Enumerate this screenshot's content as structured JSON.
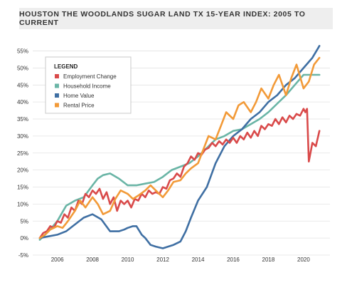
{
  "chart_data": {
    "type": "line",
    "title": "HOUSTON THE WOODLANDS SUGAR LAND TX 15-YEAR INDEX: 2005 TO CURRENT",
    "xlabel": "",
    "ylabel": "",
    "xlim": [
      2004.6,
      2021.5
    ],
    "ylim": [
      -5,
      57
    ],
    "x_ticks": [
      2006,
      2008,
      2010,
      2012,
      2014,
      2016,
      2018,
      2020
    ],
    "x_tick_labels": [
      "2006",
      "2008",
      "2010",
      "2012",
      "2014",
      "2016",
      "2018",
      "2020"
    ],
    "y_ticks": [
      -5,
      0,
      5,
      10,
      15,
      20,
      25,
      30,
      35,
      40,
      45,
      50,
      55
    ],
    "y_tick_labels": [
      "-5%",
      "0%",
      "5%",
      "10%",
      "15%",
      "20%",
      "25%",
      "30%",
      "35%",
      "40%",
      "45%",
      "50%",
      "55%"
    ],
    "grid": true,
    "legend": {
      "title": "LEGEND",
      "position": "top-left"
    },
    "series": [
      {
        "name": "Employment Change",
        "color": "#d94a4a",
        "x": [
          2005.0,
          2005.2,
          2005.4,
          2005.6,
          2005.8,
          2006.0,
          2006.2,
          2006.4,
          2006.6,
          2006.8,
          2007.0,
          2007.2,
          2007.4,
          2007.6,
          2007.8,
          2008.0,
          2008.2,
          2008.4,
          2008.6,
          2008.8,
          2009.0,
          2009.2,
          2009.4,
          2009.6,
          2009.8,
          2010.0,
          2010.2,
          2010.4,
          2010.6,
          2010.8,
          2011.0,
          2011.2,
          2011.4,
          2011.6,
          2011.8,
          2012.0,
          2012.2,
          2012.4,
          2012.6,
          2012.8,
          2013.0,
          2013.2,
          2013.4,
          2013.6,
          2013.8,
          2014.0,
          2014.2,
          2014.4,
          2014.6,
          2014.8,
          2015.0,
          2015.2,
          2015.4,
          2015.6,
          2015.8,
          2016.0,
          2016.2,
          2016.4,
          2016.6,
          2016.8,
          2017.0,
          2017.2,
          2017.4,
          2017.6,
          2017.8,
          2018.0,
          2018.2,
          2018.4,
          2018.6,
          2018.8,
          2019.0,
          2019.2,
          2019.4,
          2019.6,
          2019.8,
          2020.0,
          2020.1,
          2020.2,
          2020.3,
          2020.5,
          2020.7,
          2020.9
        ],
        "values": [
          0,
          1.5,
          2,
          3.5,
          3,
          5,
          4.5,
          7,
          6,
          9,
          8,
          11,
          10,
          13,
          12,
          14,
          13,
          14.5,
          11.5,
          13.5,
          10,
          12,
          8,
          11,
          10,
          11,
          9,
          11.5,
          11,
          13,
          12,
          14,
          13,
          13.5,
          13,
          15,
          14.5,
          17,
          17.5,
          19,
          18,
          21,
          22,
          24,
          23,
          25,
          24.5,
          26,
          26.5,
          28,
          27,
          28.5,
          27.5,
          29,
          28,
          29.5,
          28,
          30,
          29,
          31,
          29.5,
          31.5,
          30,
          33,
          32,
          33.5,
          33,
          35,
          33.5,
          35.5,
          34,
          36,
          35,
          36.5,
          36,
          38,
          37,
          38,
          22.5,
          28,
          27,
          31.5
        ]
      },
      {
        "name": "Household Income",
        "color": "#6ab5a6",
        "x": [
          2005.0,
          2005.5,
          2006.0,
          2006.5,
          2007.0,
          2007.5,
          2008.0,
          2008.3,
          2008.6,
          2009.0,
          2009.5,
          2010.0,
          2010.5,
          2011.0,
          2011.5,
          2012.0,
          2012.5,
          2013.0,
          2013.5,
          2014.0,
          2014.5,
          2015.0,
          2015.5,
          2016.0,
          2016.5,
          2017.0,
          2017.5,
          2018.0,
          2018.5,
          2019.0,
          2019.5,
          2020.0,
          2020.5,
          2020.9
        ],
        "values": [
          -0.5,
          2,
          5,
          9.5,
          11,
          12,
          15.5,
          17.5,
          18.5,
          19,
          17.5,
          15.5,
          15.5,
          16,
          16.5,
          18,
          20,
          21,
          22,
          24,
          26.5,
          29,
          30,
          31.5,
          32,
          33.5,
          35,
          37,
          39.5,
          42,
          45,
          48,
          48,
          48
        ]
      },
      {
        "name": "Home Value",
        "color": "#3f6fa3",
        "x": [
          2005.0,
          2005.5,
          2006.0,
          2006.5,
          2007.0,
          2007.5,
          2008.0,
          2008.5,
          2009.0,
          2009.5,
          2009.8,
          2010.0,
          2010.3,
          2010.5,
          2010.8,
          2011.0,
          2011.3,
          2011.6,
          2012.0,
          2012.3,
          2012.6,
          2013.0,
          2013.3,
          2013.6,
          2014.0,
          2014.5,
          2015.0,
          2015.5,
          2016.0,
          2016.5,
          2017.0,
          2017.5,
          2018.0,
          2018.5,
          2019.0,
          2019.5,
          2020.0,
          2020.5,
          2020.9
        ],
        "values": [
          0,
          0.5,
          1,
          2,
          4,
          6,
          7,
          5.5,
          2,
          2,
          2.5,
          3,
          3.5,
          3.5,
          1,
          0,
          -2,
          -2.5,
          -3,
          -2.5,
          -2,
          -1,
          2,
          6,
          11,
          15,
          22,
          27,
          30,
          32,
          35,
          37,
          40,
          42,
          45,
          47,
          50,
          53,
          56.5
        ]
      },
      {
        "name": "Rental Price",
        "color": "#f29a38",
        "x": [
          2005.0,
          2005.3,
          2005.6,
          2006.0,
          2006.3,
          2006.6,
          2007.0,
          2007.3,
          2007.6,
          2008.0,
          2008.3,
          2008.6,
          2009.0,
          2009.3,
          2009.6,
          2010.0,
          2010.3,
          2010.6,
          2011.0,
          2011.3,
          2011.6,
          2012.0,
          2012.3,
          2012.6,
          2013.0,
          2013.3,
          2013.6,
          2014.0,
          2014.3,
          2014.6,
          2015.0,
          2015.3,
          2015.6,
          2016.0,
          2016.3,
          2016.6,
          2017.0,
          2017.3,
          2017.6,
          2018.0,
          2018.3,
          2018.6,
          2019.0,
          2019.3,
          2019.6,
          2020.0,
          2020.3,
          2020.6,
          2020.9
        ],
        "values": [
          0,
          1,
          2.5,
          3.5,
          3,
          5,
          8,
          11,
          9,
          12,
          10,
          7,
          8,
          11.5,
          14,
          13,
          11.5,
          12.5,
          14,
          15.5,
          14,
          12,
          14,
          16.5,
          17,
          19,
          20.5,
          22,
          26,
          30,
          29,
          33,
          37,
          35,
          39,
          40,
          37,
          40,
          44,
          41,
          45,
          48,
          42,
          47,
          51,
          44,
          46,
          51,
          53
        ]
      }
    ]
  }
}
